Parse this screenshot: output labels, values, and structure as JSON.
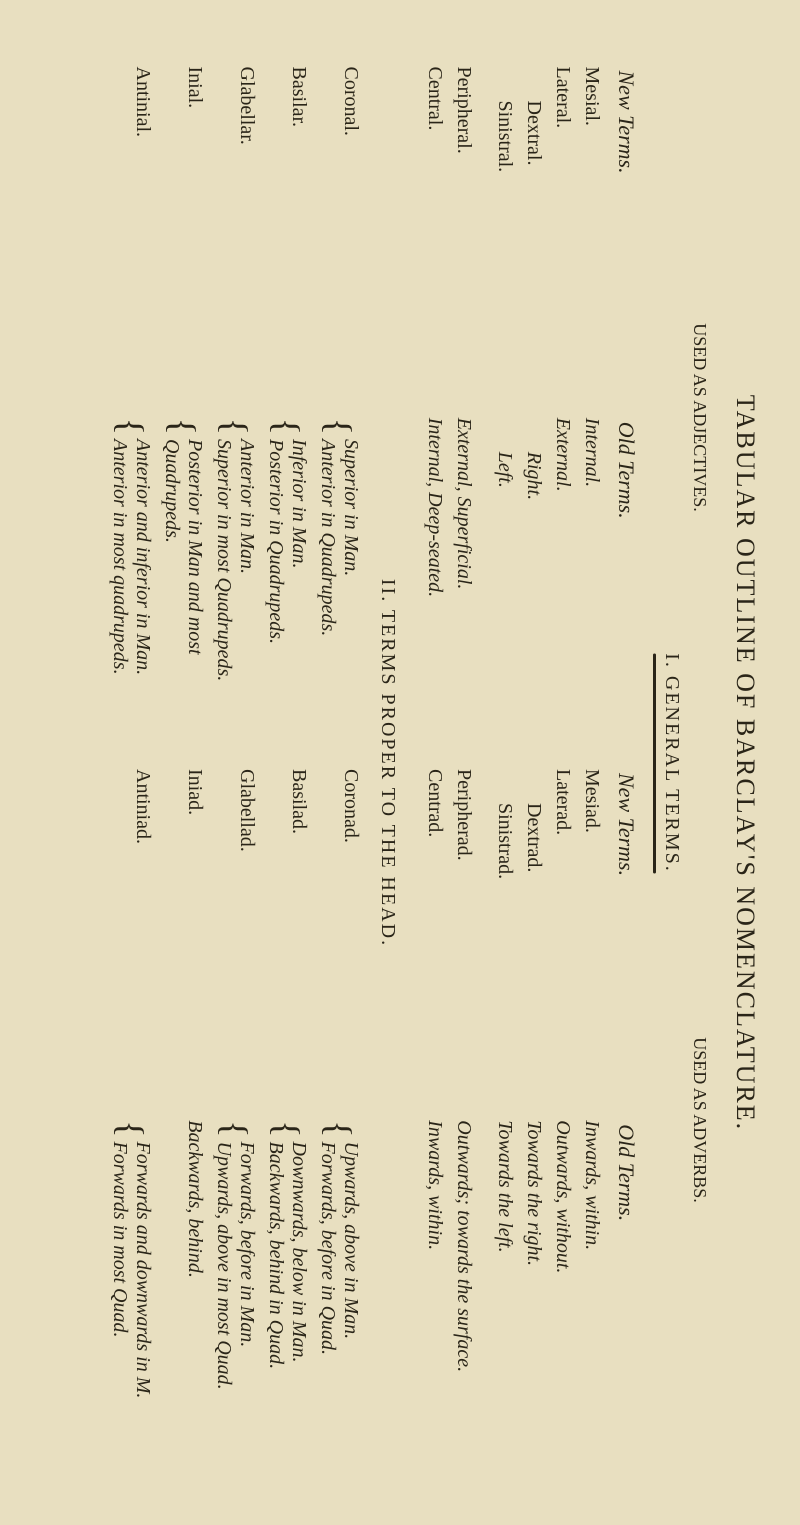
{
  "title": "TABULAR OUTLINE OF BARCLAY'S NOMENCLATURE.",
  "header_adj": "USED AS ADJECTIVES.",
  "header_adv": "USED AS ADVERBS.",
  "section1": "I. GENERAL TERMS.",
  "section2": "II.  TERMS PROPER TO THE HEAD.",
  "cols": {
    "new1": "New Terms.",
    "old1": "Old Terms.",
    "new2": "New Terms.",
    "old2": "Old Terms."
  },
  "g": {
    "mesial": "Mesial.",
    "internal": "Internal.",
    "mesiad": "Mesiad.",
    "inwards": "Inwards, within.",
    "lateral": "Lateral.",
    "external": "External.",
    "laterad": "Laterad.",
    "outwards": "Outwards, without.",
    "dextral": "Dextral.",
    "right": "Right.",
    "dextrad": "Dextrad.",
    "towards_right": "Towards the right.",
    "sinistral": "Sinistral.",
    "left": "Left.",
    "sinistrad": "Sinistrad.",
    "towards_left": "Towards the left.",
    "peripheral": "Peripheral.",
    "ext_sup": "External, Superficial.",
    "peripherad": "Peripherad.",
    "out_surface": "Outwards; towards the surface.",
    "central": "Central.",
    "int_deep": "Internal, Deep-seated.",
    "centrad": "Centrad.",
    "in_within": "Inwards, within."
  },
  "h": {
    "coronal": "Coronal.",
    "coronal_old1": "Superior in Man.",
    "coronal_old2": "Anterior in Quadrupeds.",
    "coronad": "Coronad.",
    "coronad_a1": "Upwards, above in Man.",
    "coronad_a2": "Forwards, before in Quad.",
    "basilar": "Basilar.",
    "basilar_old1": "Inferior in Man.",
    "basilar_old2": "Posterior in Quadrupeds.",
    "basilad": "Basilad.",
    "basilad_a1": "Downwards, below in Man.",
    "basilad_a2": "Backwards, behind in Quad.",
    "glabellar": "Glabellar.",
    "glabellar_old1": "Anterior in Man.",
    "glabellar_old2": "Superior in most Quadrupeds.",
    "glabellad": "Glabellad.",
    "glabellad_a1": "Forwards, before in Man.",
    "glabellad_a2": "Upwards, above in most Quad.",
    "inial": "Inial.",
    "inial_old1": "Posterior in Man and most",
    "inial_old2": "Quadrupeds.",
    "iniad": "Iniad.",
    "iniad_a": "Backwards, behind.",
    "antinial": "Antinial.",
    "antinial_old1": "Anterior and inferior in Man.",
    "antinial_old2": "Anterior in most quadrupeds.",
    "antiniad": "Antiniad.",
    "antiniad_a1": "Forwards and downwards in M.",
    "antiniad_a2": "Forwards in most Quad."
  }
}
